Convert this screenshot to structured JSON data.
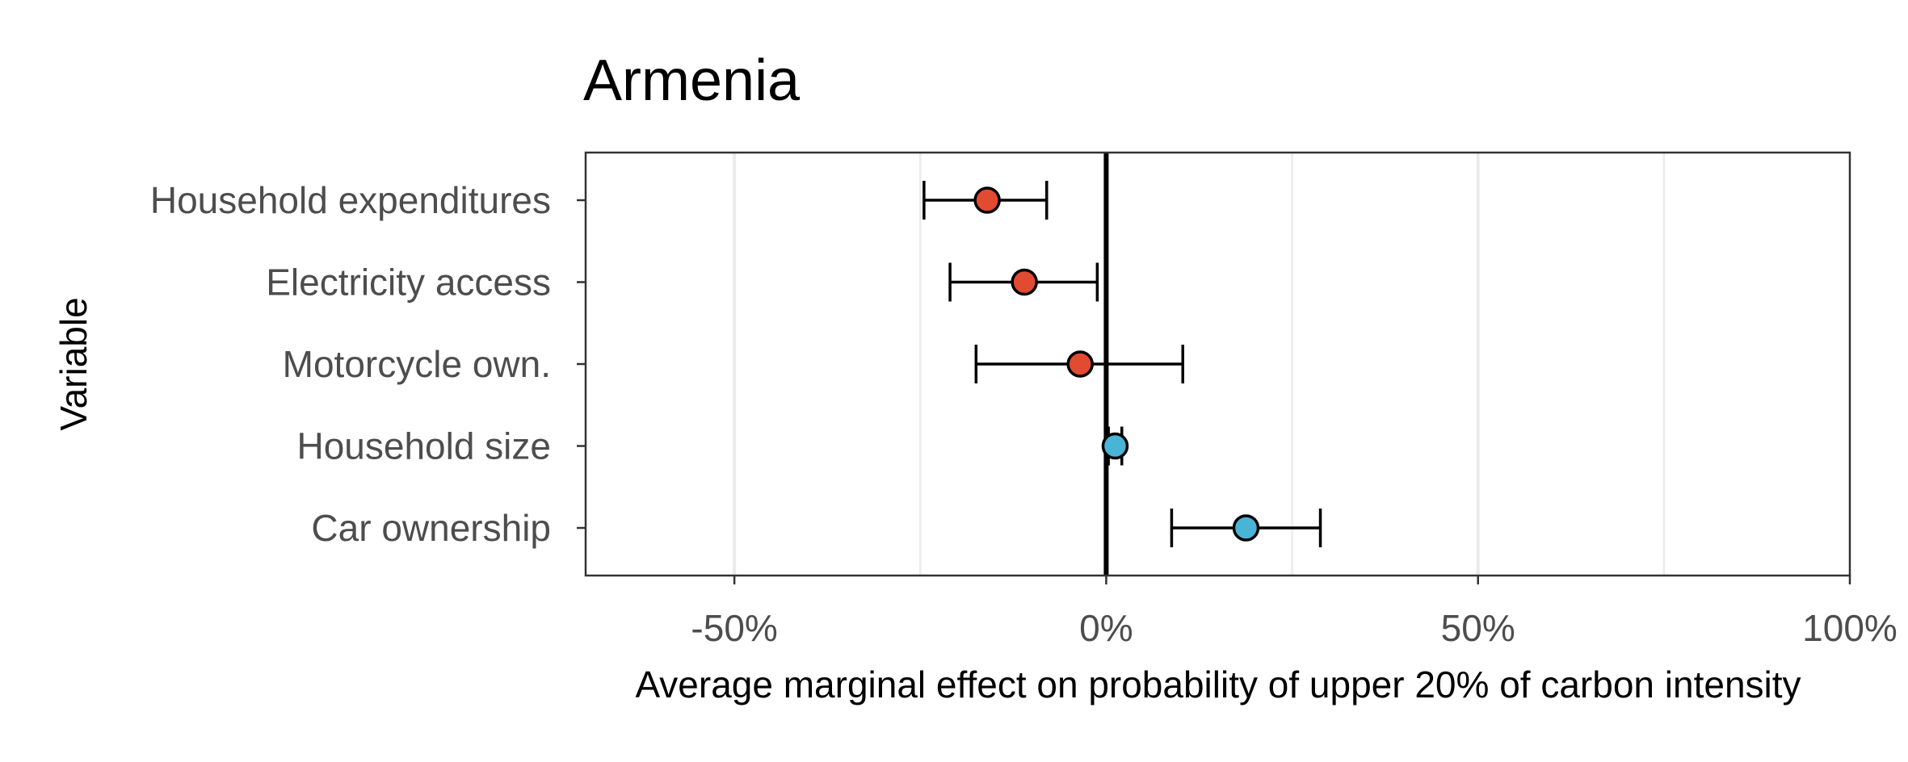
{
  "chart_data": {
    "type": "scatter",
    "subtype": "coefficient-plot-with-error-bars",
    "title": "Armenia",
    "xlabel": "Average marginal effect on probability of upper 20% of carbon intensity",
    "ylabel": "Variable",
    "xlim": [
      -0.7,
      1.0
    ],
    "xticks": [
      -0.5,
      0,
      0.5,
      1.0
    ],
    "xtick_labels": [
      "-50%",
      "0%",
      "50%",
      "100%"
    ],
    "reference_line_x": 0,
    "grid": "vertical major and minor",
    "points": [
      {
        "label": "Household expenditures",
        "estimate": -0.16,
        "ci_low": -0.245,
        "ci_high": -0.08,
        "color": "#e24b32"
      },
      {
        "label": "Electricity access",
        "estimate": -0.11,
        "ci_low": -0.21,
        "ci_high": -0.012,
        "color": "#e24b32"
      },
      {
        "label": "Motorcycle own.",
        "estimate": -0.035,
        "ci_low": -0.175,
        "ci_high": 0.103,
        "color": "#e24b32"
      },
      {
        "label": "Household size",
        "estimate": 0.012,
        "ci_low": 0.003,
        "ci_high": 0.021,
        "color": "#4ab4d7"
      },
      {
        "label": "Car ownership",
        "estimate": 0.188,
        "ci_low": 0.088,
        "ci_high": 0.288,
        "color": "#4ab4d7"
      }
    ]
  }
}
